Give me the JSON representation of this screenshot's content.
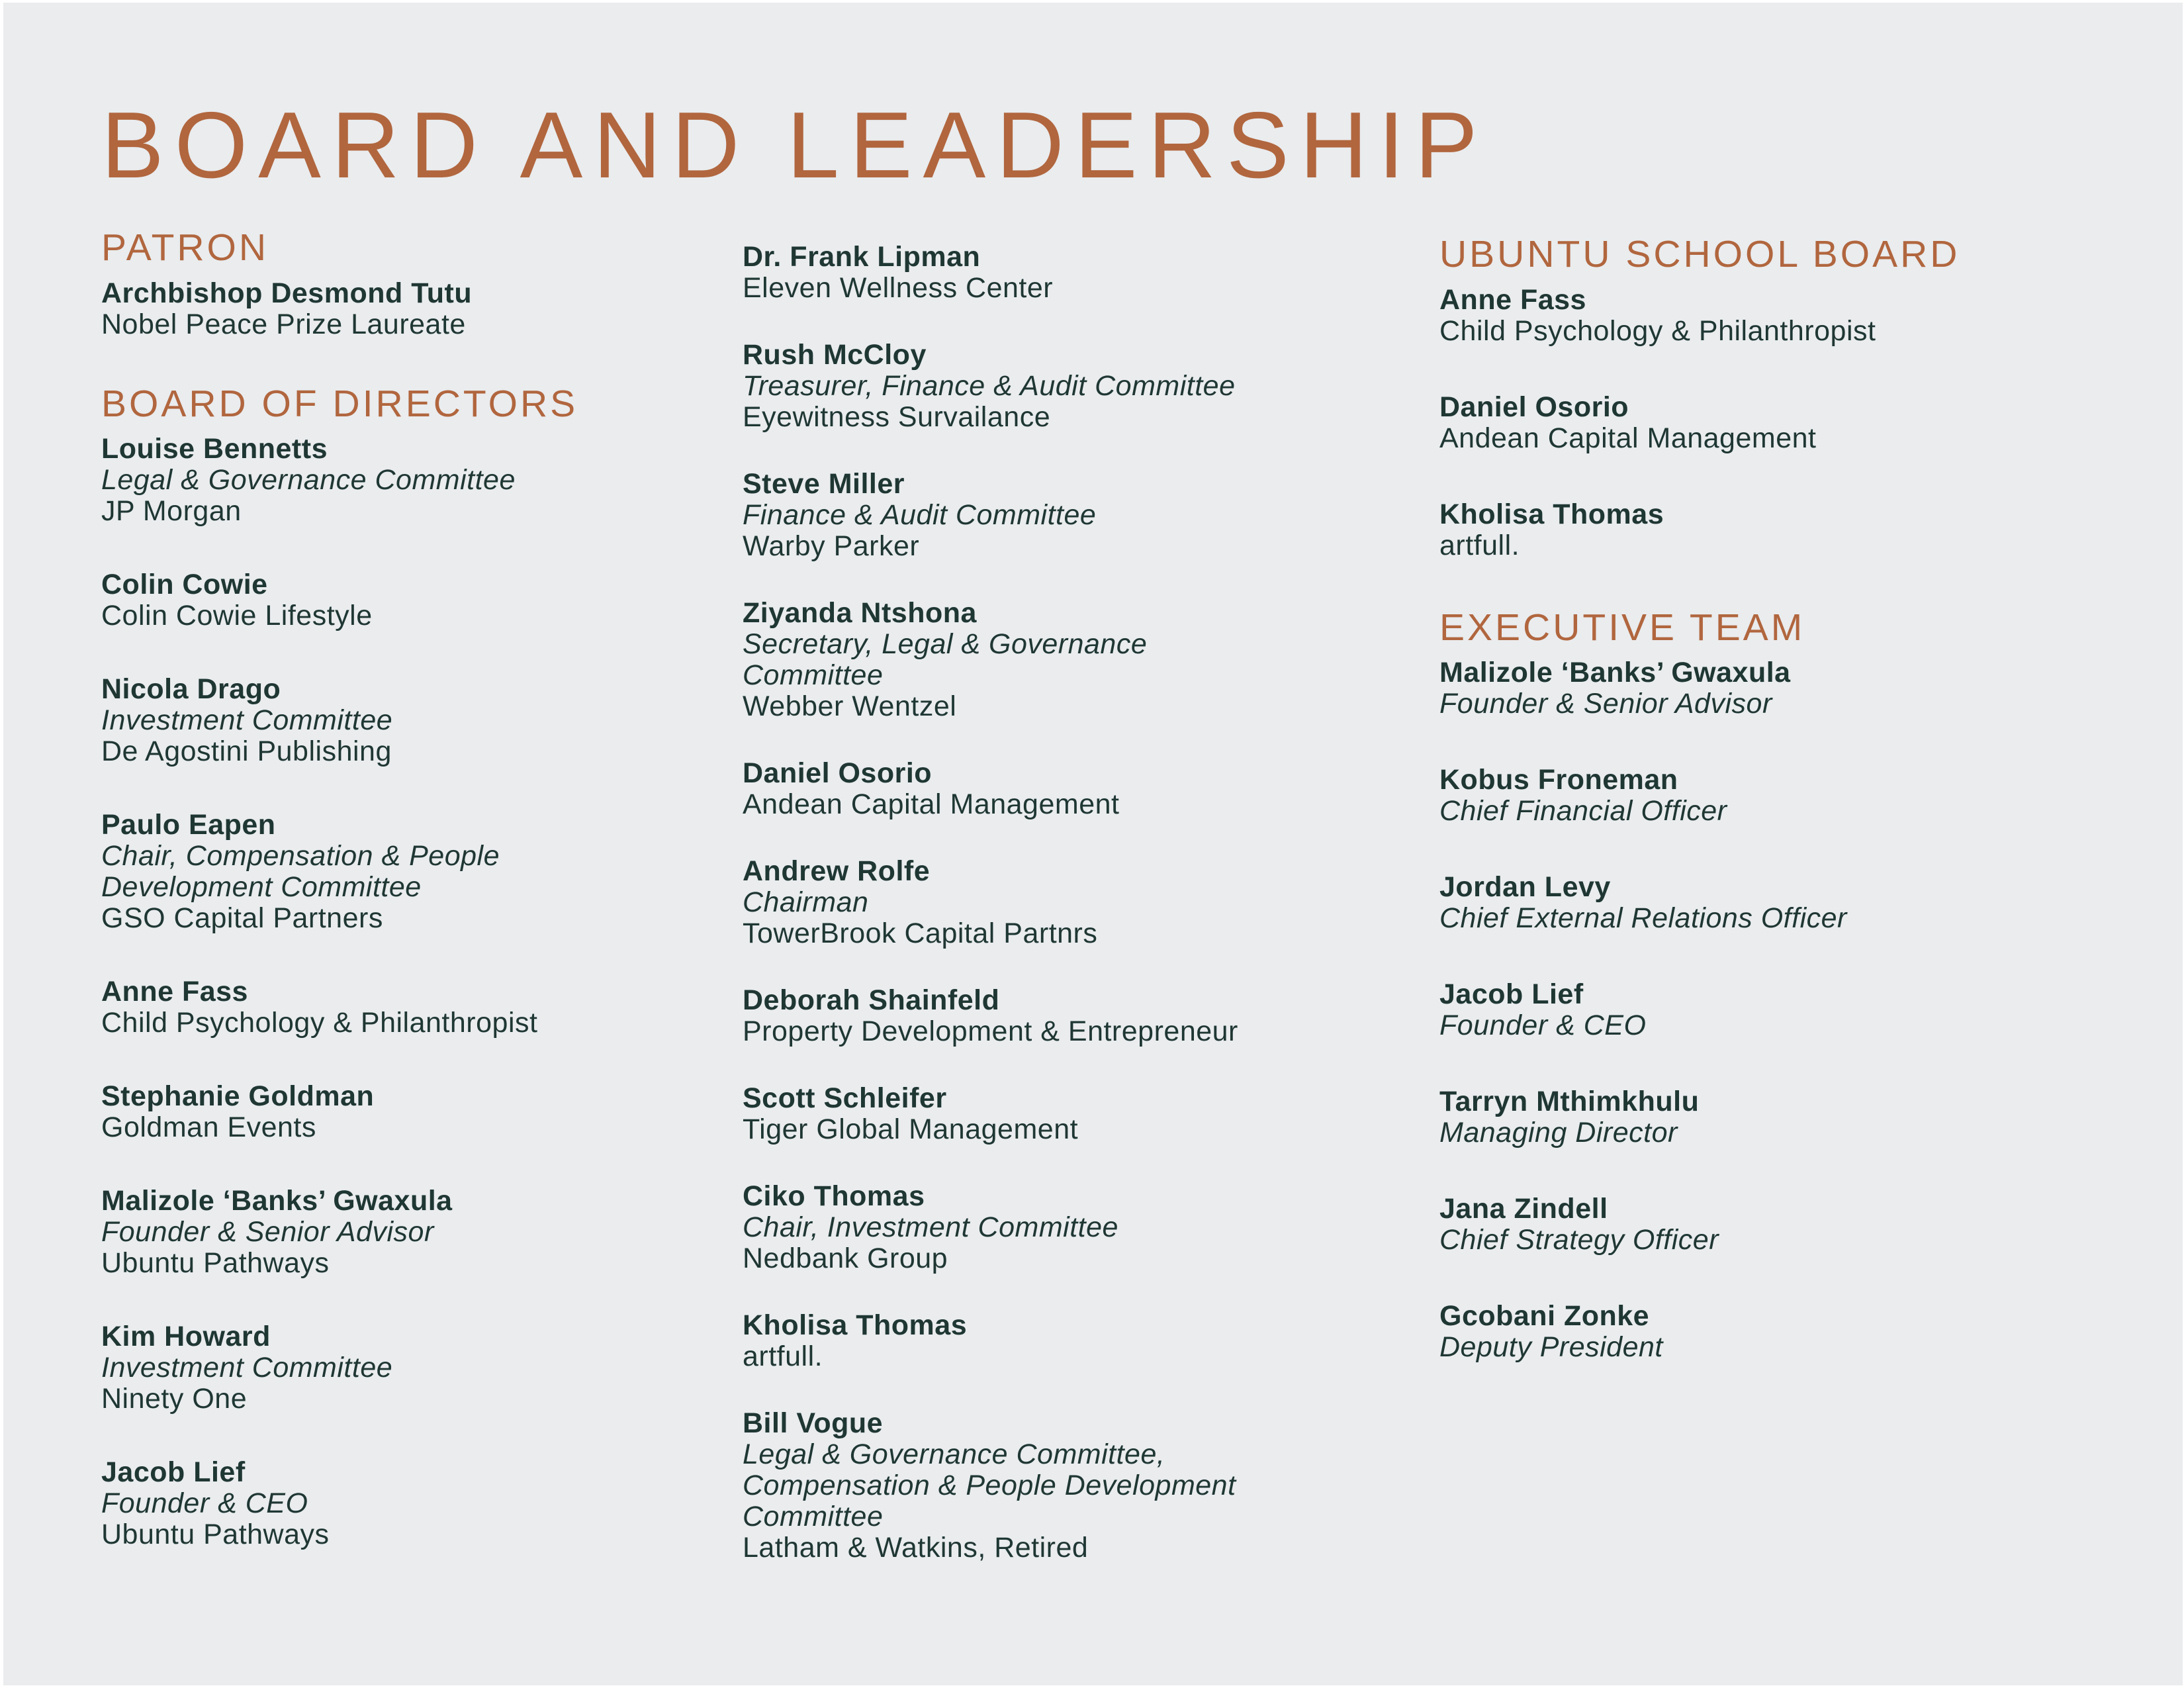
{
  "title": "BOARD AND LEADERSHIP",
  "colors": {
    "accent": "#b1663e",
    "text": "#1f3733",
    "background": "#eaecee",
    "frame": "#ffffff"
  },
  "columns": [
    {
      "sections": [
        {
          "heading": "PATRON",
          "people": [
            {
              "name": "Archbishop Desmond Tutu",
              "org": "Nobel Peace Prize Laureate"
            }
          ]
        },
        {
          "heading": "BOARD OF DIRECTORS",
          "people": [
            {
              "name": "Louise Bennetts",
              "role": "Legal & Governance Committee",
              "org": "JP Morgan"
            },
            {
              "name": "Colin Cowie",
              "org": "Colin Cowie Lifestyle"
            },
            {
              "name": "Nicola Drago",
              "role": "Investment Committee",
              "org": "De Agostini Publishing"
            },
            {
              "name": "Paulo Eapen",
              "role": "Chair, Compensation & People\nDevelopment Committee",
              "org": "GSO Capital Partners"
            },
            {
              "name": "Anne Fass",
              "org": "Child Psychology & Philanthropist"
            },
            {
              "name": "Stephanie Goldman",
              "org": "Goldman Events"
            },
            {
              "name": "Malizole ‘Banks’ Gwaxula",
              "role": "Founder & Senior Advisor",
              "org": "Ubuntu Pathways"
            },
            {
              "name": "Kim Howard",
              "role": "Investment Committee",
              "org": "Ninety One"
            },
            {
              "name": "Jacob Lief",
              "role": "Founder & CEO",
              "org": "Ubuntu Pathways"
            }
          ]
        }
      ]
    },
    {
      "sections": [
        {
          "heading": "",
          "people": [
            {
              "name": "Dr. Frank Lipman",
              "org": "Eleven Wellness Center"
            },
            {
              "name": "Rush McCloy",
              "role": "Treasurer, Finance & Audit Committee",
              "org": "Eyewitness Survailance"
            },
            {
              "name": "Steve Miller",
              "role": "Finance & Audit Committee",
              "org": "Warby Parker"
            },
            {
              "name": "Ziyanda Ntshona",
              "role": "Secretary, Legal & Governance\nCommittee",
              "org": "Webber Wentzel"
            },
            {
              "name": "Daniel Osorio",
              "org": "Andean Capital Management"
            },
            {
              "name": "Andrew Rolfe",
              "role": "Chairman",
              "org": "TowerBrook Capital Partnrs"
            },
            {
              "name": "Deborah Shainfeld",
              "org": "Property Development & Entrepreneur"
            },
            {
              "name": "Scott Schleifer",
              "org": "Tiger Global Management"
            },
            {
              "name": "Ciko Thomas",
              "role": "Chair, Investment Committee",
              "org": "Nedbank Group"
            },
            {
              "name": "Kholisa Thomas",
              "org": "artfull."
            },
            {
              "name": "Bill Vogue",
              "role": "Legal & Governance Committee,\nCompensation & People Development\nCommittee",
              "org": "Latham & Watkins, Retired"
            }
          ]
        }
      ]
    },
    {
      "sections": [
        {
          "heading": "UBUNTU SCHOOL BOARD",
          "people": [
            {
              "name": "Anne Fass",
              "org": "Child Psychology & Philanthropist"
            },
            {
              "name": "Daniel Osorio",
              "org": "Andean Capital Management"
            },
            {
              "name": "Kholisa Thomas",
              "org": "artfull."
            }
          ]
        },
        {
          "heading": "EXECUTIVE TEAM",
          "people": [
            {
              "name": "Malizole ‘Banks’ Gwaxula",
              "role": "Founder & Senior Advisor"
            },
            {
              "name": "Kobus Froneman",
              "role": "Chief Financial Officer"
            },
            {
              "name": "Jordan Levy",
              "role": "Chief External Relations Officer"
            },
            {
              "name": "Jacob Lief",
              "role": "Founder & CEO"
            },
            {
              "name": "Tarryn Mthimkhulu",
              "role": "Managing Director"
            },
            {
              "name": "Jana Zindell",
              "role": "Chief Strategy Officer"
            },
            {
              "name": "Gcobani Zonke",
              "role": "Deputy President"
            }
          ]
        }
      ]
    }
  ]
}
